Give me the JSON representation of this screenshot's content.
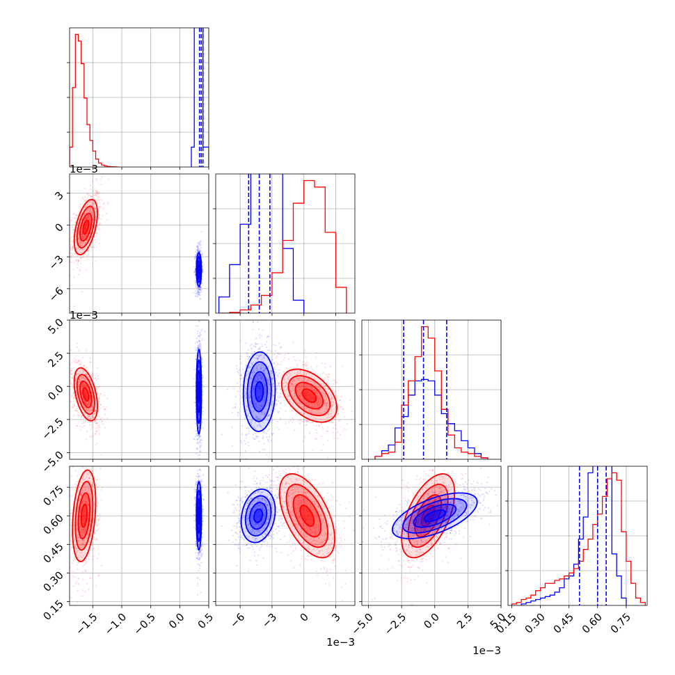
{
  "chart_data": {
    "type": "corner",
    "colors": {
      "red_sample": "#ff0000",
      "blue_sample": "#0000ff",
      "grid": "#b0b0b0"
    },
    "grid": true,
    "parameters": [
      {
        "range": [
          -1.9,
          0.5
        ],
        "ticks": [
          -1.5,
          -1.0,
          -0.5,
          0.0,
          0.5
        ],
        "tick_labels": [
          "−1.5",
          "−1.0",
          "−0.5",
          "0.0",
          "0.5"
        ],
        "offset_label": ""
      },
      {
        "range": [
          -8.3,
          4.8
        ],
        "ticks": [
          -6,
          -3,
          0,
          3
        ],
        "tick_labels": [
          "−6",
          "−3",
          "0",
          "3"
        ],
        "offset_label": "1e−3"
      },
      {
        "range": [
          -5.5,
          5.0
        ],
        "ticks": [
          -5.0,
          -2.5,
          0.0,
          2.5,
          5.0
        ],
        "tick_labels": [
          "−5.0",
          "−2.5",
          "0.0",
          "2.5",
          "5.0"
        ],
        "offset_label": "1e−3"
      },
      {
        "range": [
          0.13,
          0.86
        ],
        "ticks": [
          0.15,
          0.3,
          0.45,
          0.6,
          0.75
        ],
        "tick_labels": [
          "0.15",
          "0.30",
          "0.45",
          "0.60",
          "0.75"
        ],
        "offset_label": ""
      }
    ],
    "histograms": [
      {
        "red": {
          "edges": [
            -1.9,
            -1.85,
            -1.8,
            -1.75,
            -1.7,
            -1.65,
            -1.6,
            -1.55,
            -1.5,
            -1.45,
            -1.4,
            -1.35,
            -1.3,
            -1.25,
            -1.2,
            -1.15,
            -1.1,
            -1.05
          ],
          "counts": [
            0.15,
            0.6,
            1.0,
            0.95,
            0.78,
            0.52,
            0.32,
            0.2,
            0.12,
            0.06,
            0.03,
            0.015,
            0.008,
            0.004,
            0.002,
            0.001,
            0.0
          ]
        },
        "blue": {
          "edges": [
            0.2,
            0.25,
            0.3,
            0.35,
            0.4,
            0.45,
            0.5
          ],
          "counts": [
            0.15,
            4.0,
            4.0,
            4.0,
            0.15,
            0.15
          ]
        },
        "quantiles": [
          0.34,
          0.37,
          0.4
        ]
      },
      {
        "red": {
          "edges": [
            -8,
            -7,
            -6,
            -5,
            -4,
            -3,
            -2,
            -1,
            0,
            1,
            2,
            3,
            4
          ],
          "counts": [
            0.0,
            0.005,
            0.02,
            0.05,
            0.11,
            0.25,
            0.45,
            0.68,
            0.82,
            0.78,
            0.5,
            0.16
          ]
        },
        "blue": {
          "edges": [
            -8,
            -7,
            -6,
            -5,
            -4,
            -3,
            -2,
            -1,
            0
          ],
          "counts": [
            0.1,
            0.3,
            0.55,
            3.0,
            3.0,
            3.0,
            0.4,
            0.08
          ]
        },
        "quantiles": [
          -5.2,
          -4.2,
          -3.2
        ]
      },
      {
        "red": {
          "edges": [
            -4.5,
            -4,
            -3.5,
            -3,
            -2.5,
            -2,
            -1.5,
            -1,
            -0.5,
            0,
            0.5,
            1,
            1.5,
            2,
            2.5,
            3,
            3.5,
            4
          ],
          "counts": [
            0.02,
            0.04,
            0.05,
            0.12,
            0.38,
            0.55,
            0.72,
            0.93,
            0.85,
            0.62,
            0.35,
            0.17,
            0.08,
            0.05,
            0.04,
            0.02,
            0.01
          ]
        },
        "blue": {
          "edges": [
            -4.5,
            -4,
            -3.5,
            -3,
            -2.5,
            -2,
            -1.5,
            -1,
            -0.5,
            0,
            0.5,
            1,
            1.5,
            2,
            2.5,
            3,
            3.5,
            4
          ],
          "counts": [
            0.02,
            0.06,
            0.1,
            0.22,
            0.3,
            0.45,
            0.55,
            0.56,
            0.55,
            0.45,
            0.32,
            0.25,
            0.2,
            0.13,
            0.08,
            0.04,
            0.01
          ]
        },
        "quantiles": [
          -2.35,
          -0.85,
          0.9
        ]
      },
      {
        "red": {
          "edges": [
            0.15,
            0.175,
            0.2,
            0.225,
            0.25,
            0.275,
            0.3,
            0.325,
            0.35,
            0.375,
            0.4,
            0.425,
            0.45,
            0.475,
            0.5,
            0.525,
            0.55,
            0.575,
            0.6,
            0.625,
            0.65,
            0.675,
            0.7,
            0.725,
            0.75,
            0.775,
            0.8,
            0.825,
            0.85
          ],
          "counts": [
            0.01,
            0.02,
            0.04,
            0.05,
            0.07,
            0.1,
            0.12,
            0.15,
            0.15,
            0.17,
            0.18,
            0.2,
            0.22,
            0.25,
            0.3,
            0.38,
            0.45,
            0.55,
            0.62,
            0.74,
            0.86,
            0.9,
            0.85,
            0.5,
            0.3,
            0.15,
            0.05,
            0.02
          ]
        },
        "blue": {
          "edges": [
            0.2,
            0.225,
            0.25,
            0.275,
            0.3,
            0.325,
            0.35,
            0.375,
            0.4,
            0.425,
            0.45,
            0.475,
            0.5,
            0.525,
            0.55,
            0.575,
            0.6,
            0.625,
            0.65,
            0.675,
            0.7,
            0.725,
            0.75
          ],
          "counts": [
            0.01,
            0.02,
            0.03,
            0.04,
            0.05,
            0.06,
            0.07,
            0.09,
            0.12,
            0.18,
            0.2,
            0.28,
            0.45,
            0.6,
            0.9,
            1.2,
            1.5,
            1.5,
            1.5,
            0.35,
            0.2,
            0.05
          ]
        },
        "quantiles": [
          0.505,
          0.6,
          0.645
        ]
      }
    ],
    "pairs": [
      {
        "x": 0,
        "y": 1,
        "red": {
          "mean": [
            -1.62,
            -0.2
          ],
          "sd": [
            0.1,
            1.3
          ],
          "rho": 0.5
        },
        "blue": {
          "mean": [
            0.33,
            -4.2
          ],
          "sd": [
            0.022,
            0.8
          ],
          "rho": 0.0
        }
      },
      {
        "x": 0,
        "y": 2,
        "red": {
          "mean": [
            -1.62,
            -0.6
          ],
          "sd": [
            0.1,
            1.0
          ],
          "rho": -0.45
        },
        "blue": {
          "mean": [
            0.33,
            -0.4
          ],
          "sd": [
            0.022,
            1.6
          ],
          "rho": 0.0
        }
      },
      {
        "x": 1,
        "y": 2,
        "red": {
          "mean": [
            0.5,
            -0.7
          ],
          "sd": [
            1.3,
            1.0
          ],
          "rho": -0.45
        },
        "blue": {
          "mean": [
            -4.2,
            -0.4
          ],
          "sd": [
            0.75,
            1.5
          ],
          "rho": 0.05
        }
      },
      {
        "x": 0,
        "y": 3,
        "red": {
          "mean": [
            -1.65,
            0.6
          ],
          "sd": [
            0.1,
            0.12
          ],
          "rho": 0.3
        },
        "blue": {
          "mean": [
            0.33,
            0.6
          ],
          "sd": [
            0.022,
            0.09
          ],
          "rho": 0.0
        }
      },
      {
        "x": 1,
        "y": 3,
        "red": {
          "mean": [
            0.3,
            0.6
          ],
          "sd": [
            1.3,
            0.11
          ],
          "rho": -0.55
        },
        "blue": {
          "mean": [
            -4.3,
            0.6
          ],
          "sd": [
            0.8,
            0.07
          ],
          "rho": 0.2
        }
      },
      {
        "x": 2,
        "y": 3,
        "red": {
          "mean": [
            -0.5,
            0.6
          ],
          "sd": [
            1.0,
            0.11
          ],
          "rho": 0.55
        },
        "blue": {
          "mean": [
            0.0,
            0.6
          ],
          "sd": [
            1.6,
            0.06
          ],
          "rho": 0.6
        }
      }
    ]
  }
}
